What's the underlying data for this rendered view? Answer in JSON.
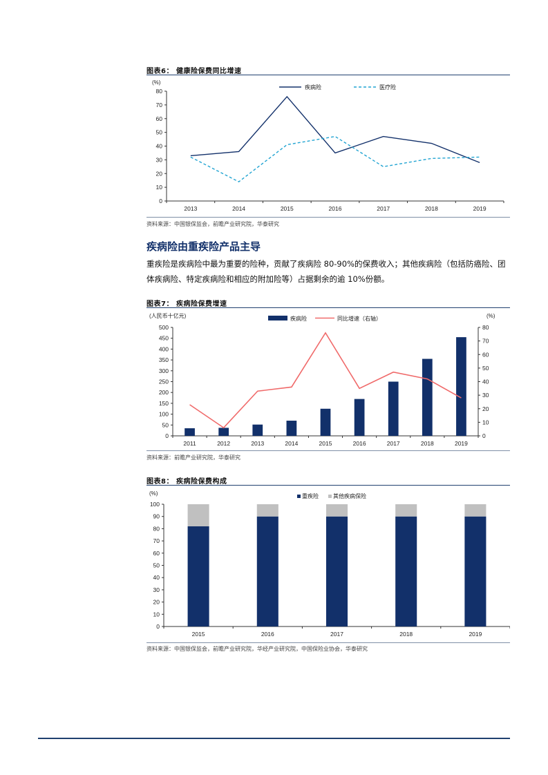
{
  "figures": [
    {
      "title": "图表6： 健康险保费同比增速",
      "source": "资料来源：中国银保监会，前瞻产业研究院，华泰研究",
      "chart_data": {
        "type": "line",
        "ylabel": "(%)",
        "x": [
          "2013",
          "2014",
          "2015",
          "2016",
          "2017",
          "2018",
          "2019"
        ],
        "ylim": [
          0,
          80
        ],
        "yticks": [
          "0",
          "10",
          "20",
          "30",
          "40",
          "50",
          "60",
          "70",
          "80"
        ],
        "legend_position": "top-center",
        "series": [
          {
            "name": "疾病险",
            "color": "#12306a",
            "style": "solid",
            "values": [
              33,
              36,
              76,
              35,
              47,
              42,
              28
            ]
          },
          {
            "name": "医疗险",
            "color": "#21a4d2",
            "style": "dashed",
            "values": [
              32,
              14,
              41,
              47,
              25,
              31,
              32
            ]
          }
        ]
      }
    },
    {
      "title": "图表7： 疾病险保费增速",
      "source": "资料来源：前瞻产业研究院，华泰研究",
      "chart_data": {
        "type": "bar+line",
        "ylabel_left": "(人民币十亿元)",
        "ylabel_right": "(%)",
        "x": [
          "2011",
          "2012",
          "2013",
          "2014",
          "2015",
          "2016",
          "2017",
          "2018",
          "2019"
        ],
        "ylim_left": [
          0,
          500
        ],
        "ylim_right": [
          0,
          80
        ],
        "yticks_left": [
          "0",
          "50",
          "100",
          "150",
          "200",
          "250",
          "300",
          "350",
          "400",
          "450",
          "500"
        ],
        "yticks_right": [
          "0",
          "10",
          "20",
          "30",
          "40",
          "50",
          "60",
          "70",
          "80"
        ],
        "legend_position": "top-center",
        "series": [
          {
            "name": "疾病险",
            "kind": "bar",
            "axis": "left",
            "color": "#12306a",
            "values": [
              35,
              37,
              52,
              70,
              125,
              170,
              250,
              355,
              455
            ]
          },
          {
            "name": "同比增速（右轴）",
            "kind": "line",
            "axis": "right",
            "color": "#f06a6a",
            "values": [
              23,
              6,
              33,
              36,
              76,
              35,
              47,
              42,
              28
            ]
          }
        ]
      }
    },
    {
      "title": "图表8： 疾病险保费构成",
      "source": "资料来源：中国银保监会，前瞻产业研究院，华经产业研究院，中国保险业协会，华泰研究",
      "chart_data": {
        "type": "bar",
        "stacked": true,
        "ylabel": "(%)",
        "x": [
          "2015",
          "2016",
          "2017",
          "2018",
          "2019"
        ],
        "ylim": [
          0,
          100
        ],
        "yticks": [
          "0",
          "10",
          "20",
          "30",
          "40",
          "50",
          "60",
          "70",
          "80",
          "90",
          "100"
        ],
        "legend_position": "top-right",
        "series": [
          {
            "name": "重疾险",
            "color": "#12306a",
            "values": [
              82,
              90,
              90,
              90,
              90
            ]
          },
          {
            "name": "其他疾病保险",
            "color": "#c0c0c0",
            "values": [
              18,
              10,
              10,
              10,
              10
            ]
          }
        ]
      }
    }
  ],
  "section": {
    "heading": "疾病险由重疾险产品主导",
    "paragraph": "重疾险是疾病险中最为重要的险种，贡献了疾病险 80-90%的保费收入；其他疾病险（包括防癌险、团体疾病险、特定疾病险和相应的附加险等）占据剩余的逾 10%份额。"
  }
}
